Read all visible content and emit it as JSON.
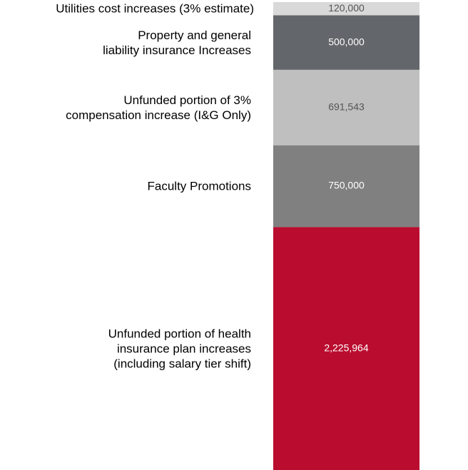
{
  "chart_data": {
    "type": "bar",
    "stacked": true,
    "categories": [
      "Utilities cost increases (3% estimate)",
      "Property and general\nliability insurance Increases",
      "Unfunded portion of 3%\ncompensation increase (I&G Only)",
      "Faculty Promotions",
      "Unfunded portion of health\ninsurance plan increases\n(including salary tier shift)"
    ],
    "values": [
      120000,
      500000,
      691543,
      750000,
      2225964
    ],
    "value_labels": [
      "120,000",
      "500,000",
      "691,543",
      "750,000",
      "2,225,964"
    ],
    "colors": [
      "#d9d9d9",
      "#63666a",
      "#bfbfbf",
      "#808080",
      "#ba0c2f"
    ],
    "label_colors": [
      "#555555",
      "#ffffff",
      "#555555",
      "#ffffff",
      "#ffffff"
    ]
  }
}
